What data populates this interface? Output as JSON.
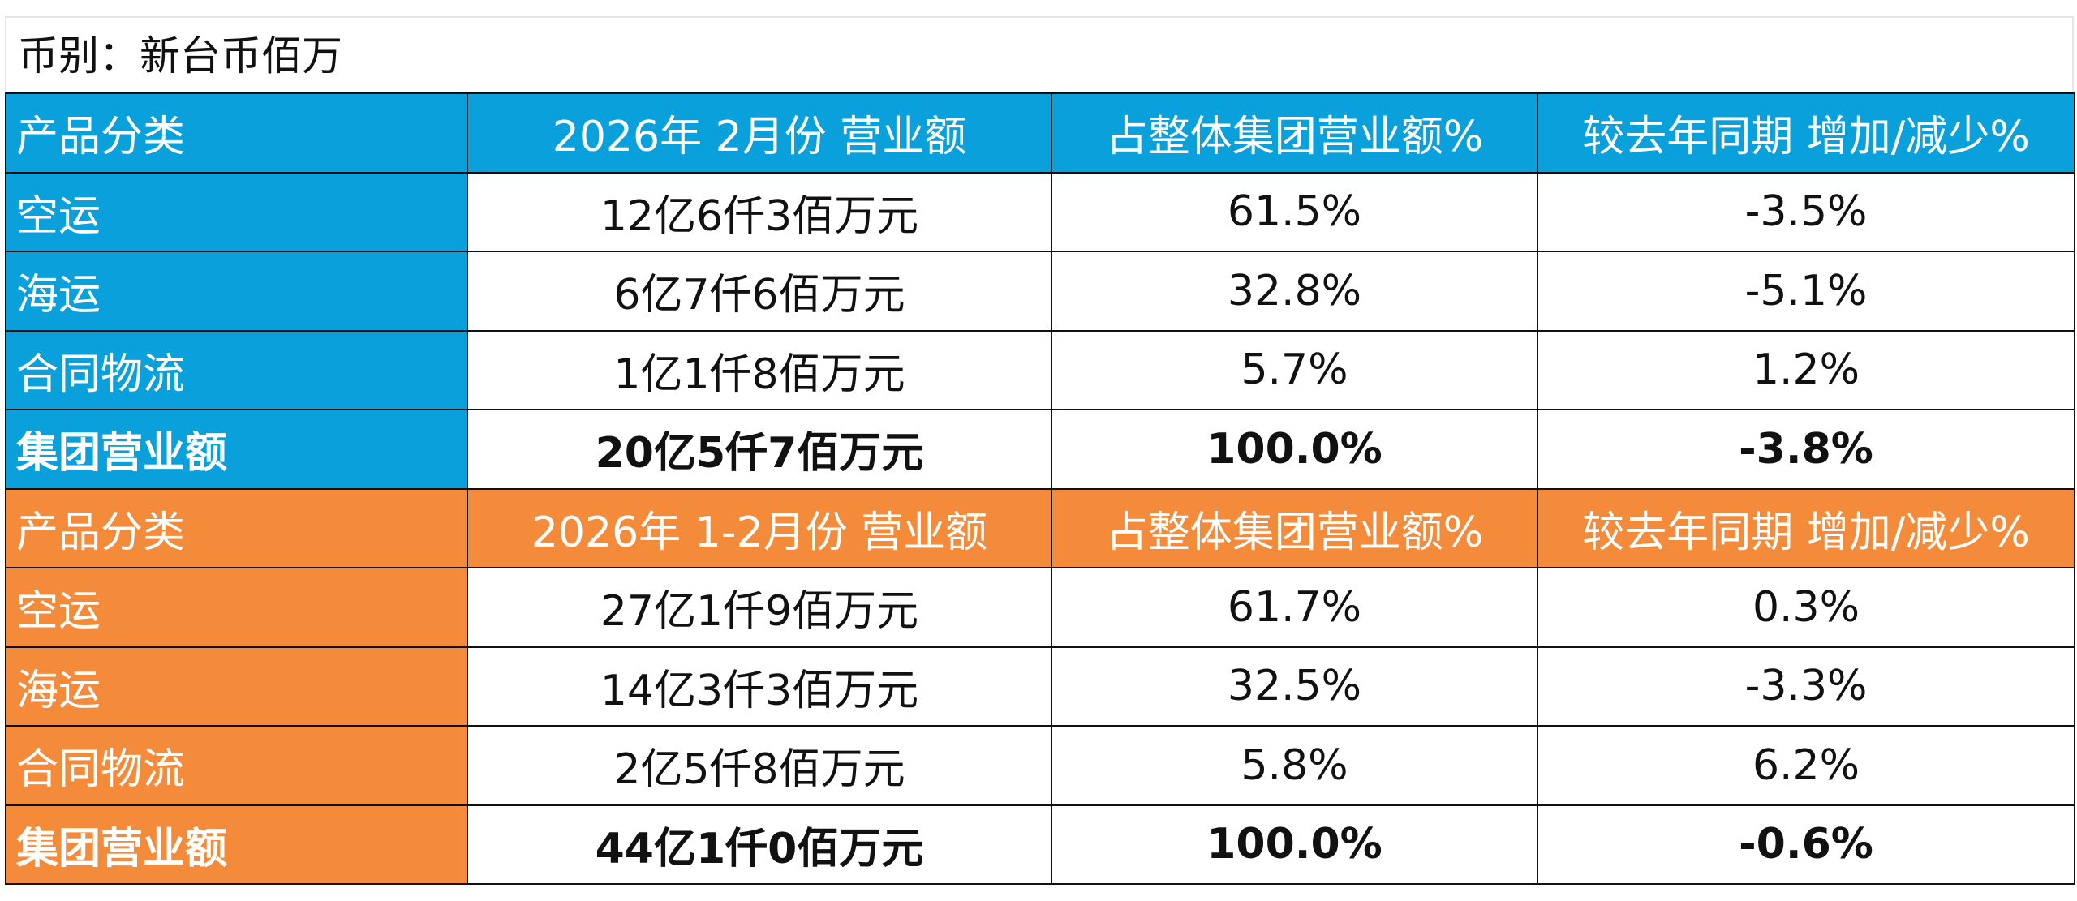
{
  "caption": "币别：新台币佰万",
  "tables": [
    {
      "header": [
        "产品分类",
        "2026年 2月份 营业额",
        "占整体集团营业额%",
        "较去年同期 增加/减少%"
      ],
      "rows": [
        [
          "空运",
          "12亿6仟3佰万元",
          "61.5%",
          "-3.5%"
        ],
        [
          "海运",
          "6亿7仟6佰万元",
          "32.8%",
          "-5.1%"
        ],
        [
          "合同物流",
          "1亿1仟8佰万元",
          "5.7%",
          "1.2%"
        ],
        [
          "集团营业额",
          "20亿5仟7佰万元",
          "100.0%",
          "-3.8%"
        ]
      ]
    },
    {
      "header": [
        "产品分类",
        "2026年 1-2月份 营业额",
        "占整体集团营业额%",
        "较去年同期 增加/减少%"
      ],
      "rows": [
        [
          "空运",
          "27亿1仟9佰万元",
          "61.7%",
          "0.3%"
        ],
        [
          "海运",
          "14亿3仟3佰万元",
          "32.5%",
          "-3.3%"
        ],
        [
          "合同物流",
          "2亿5仟8佰万元",
          "5.8%",
          "6.2%"
        ],
        [
          "集团营业额",
          "44亿1仟0佰万元",
          "100.0%",
          "-0.6%"
        ]
      ]
    }
  ]
}
